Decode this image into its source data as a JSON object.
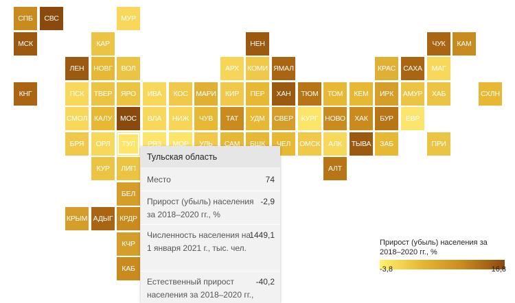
{
  "regions": [
    {
      "id": "СПБ",
      "color": "#c98a1e"
    },
    {
      "id": "СВС",
      "color": "#8a4a0e"
    },
    {
      "id": "МУР",
      "color": "#f8d85a"
    },
    {
      "id": "МСК",
      "color": "#9c5a10"
    },
    {
      "id": "КАР",
      "color": "#ecc443"
    },
    {
      "id": "НЕН",
      "color": "#9c5a10"
    },
    {
      "id": "ЧУК",
      "color": "#a96512"
    },
    {
      "id": "КАМ",
      "color": "#c98a1e"
    },
    {
      "id": "ЛЕН",
      "color": "#9c5a10"
    },
    {
      "id": "НОВГ",
      "color": "#e6b834"
    },
    {
      "id": "ВОЛ",
      "color": "#ecc443"
    },
    {
      "id": "АРХ",
      "color": "#f7d657"
    },
    {
      "id": "КОМИ",
      "color": "#f0c94a"
    },
    {
      "id": "ЯМАЛ",
      "color": "#a96512"
    },
    {
      "id": "КРАС",
      "color": "#e0b035"
    },
    {
      "id": "САХА",
      "color": "#a96512"
    },
    {
      "id": "МАГ",
      "color": "#f8d85a"
    },
    {
      "id": "КНГ",
      "color": "#a96512"
    },
    {
      "id": "ПСК",
      "color": "#f8d85a"
    },
    {
      "id": "ТВЕР",
      "color": "#ecc443"
    },
    {
      "id": "ЯРО",
      "color": "#ecc443"
    },
    {
      "id": "ИВА",
      "color": "#f8d85a"
    },
    {
      "id": "КОС",
      "color": "#f0c94a"
    },
    {
      "id": "МАРИ",
      "color": "#e0b035"
    },
    {
      "id": "КИР",
      "color": "#f0c94a"
    },
    {
      "id": "ПЕР",
      "color": "#e6b834"
    },
    {
      "id": "ХАН",
      "color": "#9c5a10"
    },
    {
      "id": "ТЮМ",
      "color": "#b87516"
    },
    {
      "id": "ТОМ",
      "color": "#e6b834"
    },
    {
      "id": "КЕМ",
      "color": "#e6b834"
    },
    {
      "id": "ИРК",
      "color": "#d59d2a"
    },
    {
      "id": "АМУР",
      "color": "#ecc443"
    },
    {
      "id": "ХАБ",
      "color": "#ecc443"
    },
    {
      "id": "СХЛН",
      "color": "#e6b834"
    },
    {
      "id": "СМОЛ",
      "color": "#f8d85a"
    },
    {
      "id": "КАЛУ",
      "color": "#e6b834"
    },
    {
      "id": "МОС",
      "color": "#8a4a0e"
    },
    {
      "id": "ВЛА",
      "color": "#f8d85a"
    },
    {
      "id": "НИЖ",
      "color": "#f7d657"
    },
    {
      "id": "ЧУВ",
      "color": "#e6b834"
    },
    {
      "id": "ТАТ",
      "color": "#c98a1e"
    },
    {
      "id": "УДМ",
      "color": "#e6b834"
    },
    {
      "id": "СВЕР",
      "color": "#d59d2a"
    },
    {
      "id": "КУРГ",
      "color": "#fde56a"
    },
    {
      "id": "НОВО",
      "color": "#c98a1e"
    },
    {
      "id": "ХАК",
      "color": "#c98a1e"
    },
    {
      "id": "БУР",
      "color": "#b87516"
    },
    {
      "id": "ЕВР",
      "color": "#fbe56d"
    },
    {
      "id": "БРЯ",
      "color": "#f0c94a"
    },
    {
      "id": "ОРЛ",
      "color": "#f8d85a"
    },
    {
      "id": "ТУЛ",
      "color": "#fde56a"
    },
    {
      "id": "РЯЗ",
      "color": "#fde56a"
    },
    {
      "id": "МОР",
      "color": "#fde56a"
    },
    {
      "id": "УЛЬ",
      "color": "#f0c94a"
    },
    {
      "id": "САМ",
      "color": "#e6b834"
    },
    {
      "id": "БШК",
      "color": "#e6b834"
    },
    {
      "id": "ЧЕЛ",
      "color": "#e6b834"
    },
    {
      "id": "ОМСК",
      "color": "#f0c94a"
    },
    {
      "id": "АЛК",
      "color": "#f8d85a"
    },
    {
      "id": "ТЫВА",
      "color": "#9c5a10"
    },
    {
      "id": "ЗАБ",
      "color": "#e6b834"
    },
    {
      "id": "ПРИ",
      "color": "#ecc443"
    },
    {
      "id": "КУР",
      "color": "#ecc443"
    },
    {
      "id": "ЛИП",
      "color": "#ecc443"
    },
    {
      "id": "АЛТ",
      "color": "#b87516"
    },
    {
      "id": "БЕЛ",
      "color": "#d59d2a"
    },
    {
      "id": "КРЫМ",
      "color": "#d59d2a"
    },
    {
      "id": "АДЫГ",
      "color": "#a96512"
    },
    {
      "id": "КРДР",
      "color": "#c98a1e"
    },
    {
      "id": "КЧР",
      "color": "#d59d2a"
    },
    {
      "id": "КАБ",
      "color": "#c98a1e"
    }
  ],
  "tooltip": {
    "title": "Тульская область",
    "rows": [
      {
        "label": "Место",
        "value": "74"
      },
      {
        "label": "Прирост (убыль) населения за 2018–2020 гг., %",
        "value": "-2,9"
      },
      {
        "label": "Численность населения на 1 января 2021 г., тыс. чел.",
        "value": "1449,1"
      },
      {
        "label": "Естественный прирост населения за 2018–2020 гг.,",
        "value": "-40,2"
      }
    ]
  },
  "legend": {
    "title": "Прирост (убыль) населения за 2018–2020 гг., %",
    "min": "-3,8",
    "max": "16,8",
    "color_low": "#fff16e",
    "color_high": "#8a4a0e"
  }
}
